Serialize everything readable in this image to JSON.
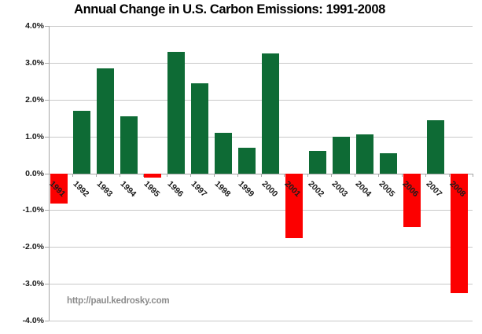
{
  "title": "Annual Change in U.S. Carbon Emissions: 1991-2008",
  "footer": {
    "url_text": "http://paul.kedrosky.com"
  },
  "colors": {
    "positive_bar": "#0e6b35",
    "negative_bar": "#fc0000",
    "gridline": "#c8c8c8",
    "axis": "#a6a6a6",
    "title_text": "#000000",
    "tick_label_text": "#1a1a1a",
    "footer_text": "#8c8c8c",
    "background": "#ffffff"
  },
  "chart_data": {
    "type": "bar",
    "title": "Annual Change in U.S. Carbon Emissions: 1991-2008",
    "categories": [
      "1991",
      "1992",
      "1993",
      "1994",
      "1995",
      "1996",
      "1997",
      "1998",
      "1999",
      "2000",
      "2001",
      "2002",
      "2003",
      "2004",
      "2005",
      "2006",
      "2007",
      "2008"
    ],
    "values": [
      -0.8,
      1.7,
      2.85,
      1.55,
      -0.1,
      3.3,
      2.45,
      1.1,
      0.7,
      3.25,
      -1.75,
      0.6,
      1.0,
      1.05,
      0.55,
      -1.45,
      1.45,
      -3.25
    ],
    "unit": "percent",
    "xlabel": "",
    "ylabel": "",
    "ylim": [
      -4.0,
      4.0
    ],
    "ytick_step": 1.0,
    "ytick_labels_top_to_bottom": [
      "4.0%",
      "3.0%",
      "2.0%",
      "1.0%",
      "0.0%",
      "-1.0%",
      "-2.0%",
      "-3.0%",
      "-4.0%"
    ],
    "grid": true,
    "legend": false,
    "annotation": "http://paul.kedrosky.com",
    "color_rule": "green for positive years, red for negative years"
  }
}
